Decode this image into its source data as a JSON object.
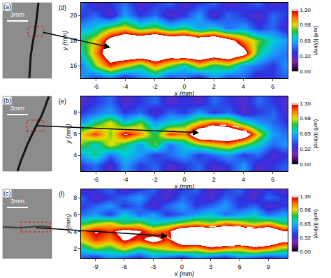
{
  "chart_data": [
    {
      "type": "heatmap",
      "panel": "(d)",
      "photo": {
        "panel": "(a)",
        "scale_bar": "3mm"
      },
      "x_label": "x (mm)",
      "y_label": "y (mm)",
      "x": [
        -7,
        -6,
        -5,
        -4,
        -3,
        -2,
        -1,
        0,
        1,
        2,
        3,
        4,
        5,
        6,
        7
      ],
      "y": [
        15,
        16,
        17,
        18,
        19,
        20,
        21
      ],
      "z": [
        [
          0.6,
          0.4,
          0.5,
          0.3,
          0.5,
          0.6,
          0.4,
          0.5,
          0.3,
          0.6,
          0.4,
          0.5,
          0.3,
          0.4,
          0.5
        ],
        [
          0.5,
          0.9,
          1.2,
          1.0,
          0.8,
          1.1,
          0.9,
          0.7,
          1.0,
          0.8,
          0.9,
          0.6,
          0.5,
          0.4,
          0.6
        ],
        [
          0.7,
          1.1,
          1.5,
          1.6,
          1.6,
          1.6,
          1.5,
          1.6,
          1.6,
          1.5,
          1.6,
          1.4,
          0.8,
          0.6,
          0.5
        ],
        [
          0.8,
          1.0,
          1.4,
          1.6,
          1.6,
          1.7,
          1.6,
          1.6,
          1.5,
          1.6,
          1.4,
          1.1,
          0.9,
          0.7,
          0.6
        ],
        [
          0.6,
          0.7,
          0.9,
          1.0,
          0.8,
          0.9,
          0.7,
          0.8,
          0.6,
          0.7,
          0.5,
          0.6,
          0.4,
          0.5,
          0.3
        ],
        [
          0.4,
          0.5,
          0.3,
          0.6,
          0.4,
          0.5,
          0.3,
          0.4,
          0.6,
          0.3,
          0.5,
          0.4,
          0.3,
          0.5,
          0.4
        ],
        [
          0.5,
          0.3,
          0.4,
          0.5,
          0.3,
          0.4,
          0.5,
          0.3,
          0.4,
          0.5,
          0.3,
          0.4,
          0.5,
          0.3,
          0.4
        ]
      ],
      "xlim": [
        -7,
        7
      ],
      "ylim": [
        15,
        21
      ],
      "xticks": [
        -6,
        -4,
        -2,
        0,
        2,
        4,
        6
      ],
      "yticks": [
        16,
        18,
        20
      ],
      "colorbar": {
        "title": "|Δu(y)| (μm)",
        "range": [
          0,
          1.3
        ],
        "ticks": [
          {
            "value": 0,
            "label": "0.00"
          },
          0.32,
          0.65,
          0.98,
          {
            "value": 1.3,
            "label": "1.30"
          }
        ]
      },
      "ellipses": [
        [
          -5,
          3.8,
          16.6,
          18.3
        ]
      ]
    },
    {
      "type": "heatmap",
      "panel": "(e)",
      "photo": {
        "panel": "(b)",
        "scale_bar": "3mm"
      },
      "x_label": "x (mm)",
      "y_label": "y (mm)",
      "x": [
        -7,
        -6,
        -5,
        -4,
        -3,
        -2,
        -1,
        0,
        1,
        2,
        3,
        4,
        5,
        6,
        7
      ],
      "y": [
        3,
        4,
        5,
        6,
        7,
        8,
        9
      ],
      "z": [
        [
          0.4,
          0.5,
          0.3,
          0.6,
          0.4,
          0.5,
          0.3,
          0.4,
          0.5,
          0.3,
          0.4,
          0.6,
          0.3,
          0.4,
          0.5
        ],
        [
          0.6,
          0.8,
          0.5,
          0.7,
          0.6,
          0.4,
          0.5,
          0.6,
          0.4,
          0.5,
          0.6,
          0.4,
          0.5,
          0.3,
          0.4
        ],
        [
          0.9,
          0.7,
          1.0,
          0.8,
          0.6,
          0.9,
          0.5,
          0.7,
          0.9,
          1.0,
          1.1,
          0.9,
          0.7,
          0.5,
          0.6
        ],
        [
          1.0,
          1.2,
          0.9,
          1.3,
          1.1,
          0.8,
          1.2,
          1.1,
          1.6,
          1.6,
          1.6,
          1.5,
          1.0,
          0.6,
          0.5
        ],
        [
          0.6,
          0.8,
          1.0,
          0.7,
          0.9,
          0.6,
          0.7,
          0.8,
          1.0,
          1.2,
          1.1,
          0.8,
          0.6,
          0.5,
          0.4
        ],
        [
          0.4,
          0.5,
          0.6,
          0.4,
          0.5,
          0.3,
          0.5,
          0.4,
          0.6,
          0.4,
          0.5,
          0.3,
          0.4,
          0.5,
          0.3
        ],
        [
          0.3,
          0.4,
          0.5,
          0.3,
          0.4,
          0.5,
          0.3,
          0.4,
          0.3,
          0.5,
          0.4,
          0.3,
          0.5,
          0.4,
          0.3
        ]
      ],
      "xlim": [
        -7,
        7
      ],
      "ylim": [
        2.5,
        9.5
      ],
      "xticks": [
        -6,
        -4,
        -2,
        0,
        2,
        4,
        6
      ],
      "yticks": [
        4,
        6,
        8
      ],
      "colorbar": {
        "title": "|Δu(y)| (μm)",
        "range": [
          0,
          1.3
        ],
        "ticks": [
          {
            "value": 0,
            "label": "0.00"
          },
          0.32,
          0.65,
          0.98,
          {
            "value": 1.3,
            "label": "1.30"
          }
        ]
      },
      "ellipses": [
        [
          1,
          4.2,
          5.4,
          6.8
        ]
      ]
    },
    {
      "type": "heatmap",
      "panel": "(f)",
      "photo": {
        "panel": "(c)",
        "scale_bar": "3mm"
      },
      "x_label": "x (mm)",
      "y_label": "y (mm)",
      "x": [
        -10.5,
        -9,
        -7.5,
        -6,
        -4.5,
        -3,
        -1.5,
        0,
        1.5,
        3,
        4.5,
        6,
        7.5,
        9,
        10.5
      ],
      "y": [
        1,
        2,
        3,
        4,
        5,
        6,
        7,
        8,
        9
      ],
      "z": [
        [
          0.5,
          0.4,
          0.6,
          0.5,
          0.4,
          0.6,
          0.5,
          0.4,
          0.6,
          0.5,
          0.4,
          0.6,
          0.5,
          0.4,
          0.5
        ],
        [
          0.7,
          0.9,
          0.8,
          1.0,
          0.8,
          0.9,
          1.0,
          1.1,
          1.0,
          1.2,
          1.1,
          1.0,
          1.2,
          1.1,
          0.9
        ],
        [
          1.0,
          1.2,
          1.1,
          1.3,
          1.2,
          1.4,
          1.2,
          1.5,
          1.6,
          1.6,
          1.6,
          1.6,
          1.6,
          1.6,
          1.4
        ],
        [
          1.1,
          1.3,
          1.2,
          1.4,
          1.3,
          1.1,
          1.2,
          1.6,
          1.6,
          1.6,
          1.6,
          1.6,
          1.5,
          1.6,
          1.3
        ],
        [
          0.8,
          0.9,
          1.0,
          0.8,
          0.9,
          0.7,
          0.8,
          0.9,
          1.0,
          0.9,
          1.1,
          1.0,
          0.9,
          1.0,
          0.8
        ],
        [
          0.5,
          0.6,
          0.4,
          0.7,
          0.5,
          0.6,
          0.4,
          0.5,
          0.6,
          0.7,
          0.5,
          0.6,
          0.7,
          0.5,
          0.6
        ],
        [
          0.4,
          0.5,
          0.6,
          0.4,
          0.5,
          0.3,
          0.5,
          0.6,
          0.4,
          0.5,
          0.6,
          0.4,
          0.5,
          0.3,
          0.4
        ],
        [
          0.5,
          0.3,
          0.4,
          0.5,
          0.6,
          0.4,
          0.3,
          0.5,
          0.4,
          0.3,
          0.5,
          0.4,
          0.3,
          0.5,
          0.4
        ],
        [
          0.3,
          0.4,
          0.5,
          0.3,
          0.4,
          0.5,
          0.3,
          0.4,
          0.5,
          0.3,
          0.4,
          0.5,
          0.3,
          0.4,
          0.3
        ]
      ],
      "xlim": [
        -10.5,
        11
      ],
      "ylim": [
        0.8,
        9
      ],
      "xticks": [
        -9,
        -6,
        -3,
        0,
        3,
        6,
        9
      ],
      "yticks": [
        2,
        4,
        6,
        8
      ],
      "colorbar": {
        "title": "|Δu(y)| (μm)",
        "range": [
          0,
          1.3
        ],
        "ticks": [
          {
            "value": 0,
            "label": "0.00"
          },
          0.32,
          0.65,
          0.98,
          {
            "value": 1.3,
            "label": "1.30"
          }
        ]
      },
      "ellipses": [
        [
          -1.5,
          10.5,
          2.3,
          4.6
        ]
      ]
    }
  ]
}
